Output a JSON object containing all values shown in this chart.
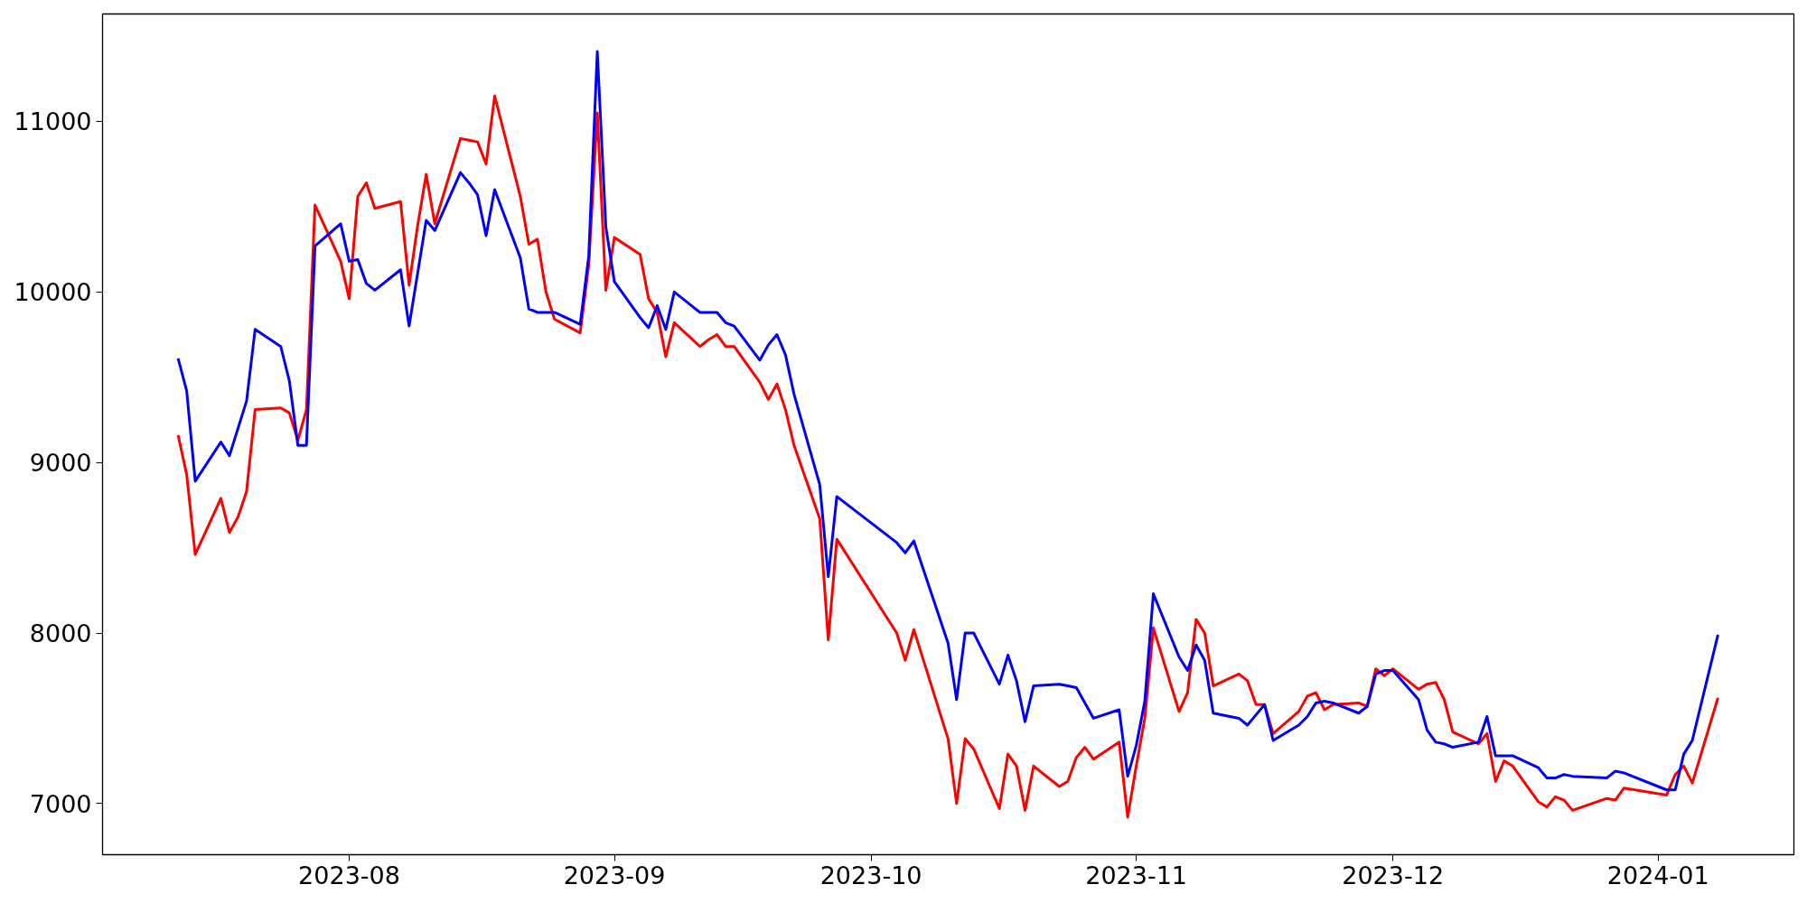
{
  "chart_data": {
    "type": "line",
    "x": [
      "2023-07-12",
      "2023-07-13",
      "2023-07-14",
      "2023-07-17",
      "2023-07-18",
      "2023-07-19",
      "2023-07-20",
      "2023-07-21",
      "2023-07-24",
      "2023-07-25",
      "2023-07-26",
      "2023-07-27",
      "2023-07-28",
      "2023-07-31",
      "2023-08-01",
      "2023-08-02",
      "2023-08-03",
      "2023-08-04",
      "2023-08-07",
      "2023-08-08",
      "2023-08-09",
      "2023-08-10",
      "2023-08-11",
      "2023-08-14",
      "2023-08-15",
      "2023-08-16",
      "2023-08-17",
      "2023-08-18",
      "2023-08-21",
      "2023-08-22",
      "2023-08-23",
      "2023-08-24",
      "2023-08-25",
      "2023-08-28",
      "2023-08-29",
      "2023-08-30",
      "2023-08-31",
      "2023-09-01",
      "2023-09-04",
      "2023-09-05",
      "2023-09-06",
      "2023-09-07",
      "2023-09-08",
      "2023-09-11",
      "2023-09-12",
      "2023-09-13",
      "2023-09-14",
      "2023-09-15",
      "2023-09-18",
      "2023-09-19",
      "2023-09-20",
      "2023-09-21",
      "2023-09-22",
      "2023-09-25",
      "2023-09-26",
      "2023-09-27",
      "2023-10-04",
      "2023-10-05",
      "2023-10-06",
      "2023-10-10",
      "2023-10-11",
      "2023-10-12",
      "2023-10-13",
      "2023-10-16",
      "2023-10-17",
      "2023-10-18",
      "2023-10-19",
      "2023-10-20",
      "2023-10-23",
      "2023-10-24",
      "2023-10-25",
      "2023-10-26",
      "2023-10-27",
      "2023-10-30",
      "2023-10-31",
      "2023-11-01",
      "2023-11-02",
      "2023-11-03",
      "2023-11-06",
      "2023-11-07",
      "2023-11-08",
      "2023-11-09",
      "2023-11-10",
      "2023-11-13",
      "2023-11-14",
      "2023-11-15",
      "2023-11-16",
      "2023-11-17",
      "2023-11-20",
      "2023-11-21",
      "2023-11-22",
      "2023-11-23",
      "2023-11-24",
      "2023-11-27",
      "2023-11-28",
      "2023-11-29",
      "2023-11-30",
      "2023-12-01",
      "2023-12-04",
      "2023-12-05",
      "2023-12-06",
      "2023-12-07",
      "2023-12-08",
      "2023-12-11",
      "2023-12-12",
      "2023-12-13",
      "2023-12-14",
      "2023-12-15",
      "2023-12-18",
      "2023-12-19",
      "2023-12-20",
      "2023-12-21",
      "2023-12-22",
      "2023-12-26",
      "2023-12-27",
      "2023-12-28",
      "2024-01-02",
      "2024-01-03",
      "2024-01-04",
      "2024-01-05",
      "2024-01-08"
    ],
    "series": [
      {
        "color": "#ff0000",
        "values": [
          9160,
          8930,
          8460,
          8790,
          8590,
          8680,
          8830,
          9310,
          9320,
          9290,
          9130,
          9310,
          10510,
          10180,
          9960,
          10560,
          10640,
          10490,
          10530,
          10040,
          10390,
          10690,
          10400,
          10900,
          10890,
          10880,
          10750,
          11150,
          10560,
          10280,
          10310,
          10000,
          9840,
          9760,
          10160,
          11050,
          10010,
          10320,
          10220,
          9960,
          9880,
          9620,
          9820,
          9680,
          9720,
          9750,
          9680,
          9680,
          9470,
          9370,
          9460,
          9310,
          9100,
          8670,
          7960,
          8550,
          8000,
          7840,
          8020,
          7380,
          7000,
          7380,
          7320,
          6970,
          7290,
          7220,
          6960,
          7220,
          7100,
          7130,
          7270,
          7330,
          7260,
          7360,
          6920,
          7220,
          7500,
          8030,
          7540,
          7650,
          8080,
          8000,
          7690,
          7760,
          7720,
          7580,
          7580,
          7410,
          7540,
          7630,
          7650,
          7550,
          7580,
          7590,
          7570,
          7790,
          7750,
          7790,
          7670,
          7700,
          7710,
          7610,
          7420,
          7350,
          7410,
          7130,
          7250,
          7220,
          7010,
          6980,
          7040,
          7020,
          6960,
          7030,
          7020,
          7090,
          7050,
          7170,
          7220,
          7120,
          7620
        ]
      },
      {
        "color": "#0000ff",
        "values": [
          9610,
          9420,
          8890,
          9120,
          9040,
          9200,
          9360,
          9780,
          9680,
          9480,
          9100,
          9100,
          10270,
          10400,
          10180,
          10190,
          10050,
          10010,
          10130,
          9800,
          10110,
          10420,
          10360,
          10700,
          10640,
          10570,
          10330,
          10600,
          10200,
          9900,
          9880,
          9880,
          9880,
          9810,
          10210,
          11410,
          10380,
          10060,
          9850,
          9790,
          9920,
          9780,
          10000,
          9880,
          9880,
          9880,
          9820,
          9800,
          9600,
          9690,
          9750,
          9630,
          9400,
          8870,
          8330,
          8800,
          8530,
          8470,
          8540,
          7940,
          7610,
          8000,
          8000,
          7700,
          7870,
          7720,
          7480,
          7690,
          7700,
          7690,
          7680,
          7590,
          7500,
          7550,
          7160,
          7340,
          7600,
          8230,
          7860,
          7780,
          7930,
          7840,
          7530,
          7500,
          7460,
          7520,
          7580,
          7370,
          7460,
          7510,
          7590,
          7600,
          7590,
          7530,
          7570,
          7760,
          7780,
          7780,
          7610,
          7430,
          7360,
          7350,
          7330,
          7360,
          7510,
          7280,
          7280,
          7280,
          7210,
          7150,
          7150,
          7170,
          7160,
          7150,
          7190,
          7180,
          7080,
          7080,
          7290,
          7370,
          7990
        ]
      }
    ],
    "xlim": [
      "2023-07-03T04:00",
      "2024-01-16T21:00"
    ],
    "xticks": [
      "2023-08",
      "2023-09",
      "2023-10",
      "2023-11",
      "2023-12",
      "2024-01"
    ],
    "ylim": [
      6700,
      11630
    ],
    "yticks": [
      7000,
      8000,
      9000,
      10000,
      11000
    ],
    "grid": false,
    "marker": "none",
    "line_style": "solid"
  }
}
